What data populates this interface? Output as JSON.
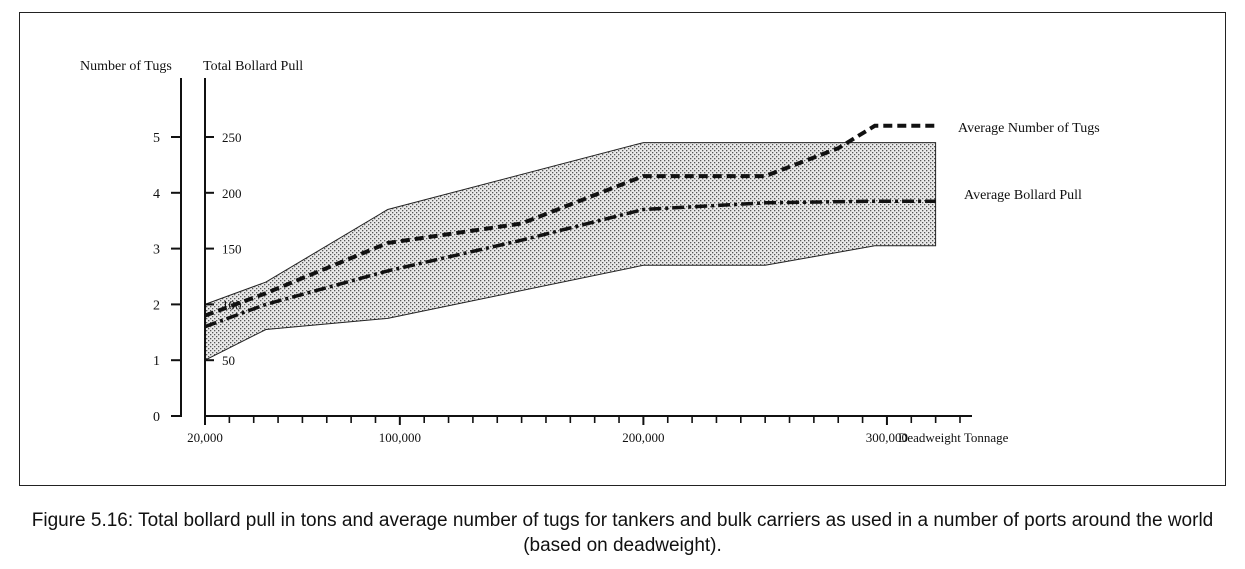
{
  "caption": "Figure 5.16: Total bollard pull in tons and average number of tugs for tankers and bulk carriers as used in a number of ports around the world (based on deadweight).",
  "chart_data": {
    "type": "area",
    "xlabel": "Deadweight Tonnage",
    "x_tick_labels": [
      {
        "x": 20000,
        "label": "20,000"
      },
      {
        "x": 100000,
        "label": "100,000"
      },
      {
        "x": 200000,
        "label": "200,000"
      },
      {
        "x": 300000,
        "label": "300,000"
      }
    ],
    "xlim": [
      20000,
      330000
    ],
    "y_left": {
      "label": "Number of Tugs",
      "lim": [
        0,
        5
      ],
      "ticks": [
        {
          "value": 0,
          "label": "0"
        },
        {
          "value": 1,
          "label": "1"
        },
        {
          "value": 2,
          "label": "2"
        },
        {
          "value": 3,
          "label": "3"
        },
        {
          "value": 4,
          "label": "4"
        },
        {
          "value": 5,
          "label": "5"
        }
      ]
    },
    "y_right": {
      "label": "Total Bollard Pull",
      "lim": [
        0,
        250
      ],
      "ticks": [
        {
          "value": 50,
          "label": "50"
        },
        {
          "value": 100,
          "label": "100"
        },
        {
          "value": 150,
          "label": "150"
        },
        {
          "value": 200,
          "label": "200"
        },
        {
          "value": 250,
          "label": "250"
        }
      ]
    },
    "band": {
      "upper": [
        [
          20000,
          2.0
        ],
        [
          45000,
          2.4
        ],
        [
          95000,
          3.7
        ],
        [
          200000,
          4.9
        ],
        [
          320000,
          4.9
        ]
      ],
      "lower": [
        [
          20000,
          1.0
        ],
        [
          45000,
          1.55
        ],
        [
          95000,
          1.75
        ],
        [
          200000,
          2.7
        ],
        [
          250000,
          2.7
        ],
        [
          295000,
          3.05
        ],
        [
          320000,
          3.05
        ]
      ]
    },
    "series": [
      {
        "name": "Average Number of Tugs",
        "axis": "left",
        "style": "dashed",
        "points": [
          [
            20000,
            1.8
          ],
          [
            45000,
            2.2
          ],
          [
            95000,
            3.1
          ],
          [
            150000,
            3.45
          ],
          [
            200000,
            4.3
          ],
          [
            250000,
            4.3
          ],
          [
            280000,
            4.8
          ],
          [
            295000,
            5.2
          ],
          [
            320000,
            5.2
          ]
        ]
      },
      {
        "name": "Average Bollard Pull",
        "axis": "left",
        "style": "dash-dot",
        "points": [
          [
            20000,
            1.6
          ],
          [
            45000,
            2.0
          ],
          [
            95000,
            2.6
          ],
          [
            150000,
            3.15
          ],
          [
            200000,
            3.7
          ],
          [
            250000,
            3.82
          ],
          [
            295000,
            3.85
          ],
          [
            320000,
            3.85
          ]
        ]
      }
    ],
    "grid": false,
    "legend": "inline labels at right end of lines"
  }
}
